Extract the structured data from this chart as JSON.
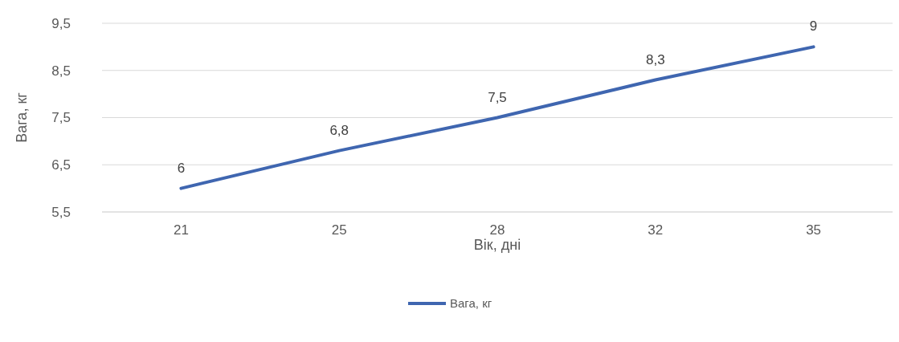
{
  "chart_data": {
    "type": "line",
    "xlabel": "Вік, дні",
    "ylabel": "Вага, кг",
    "categories": [
      "21",
      "25",
      "28",
      "32",
      "35"
    ],
    "series": [
      {
        "name": "Вага, кг",
        "color": "#3f66b0",
        "values": [
          6,
          6.8,
          7.5,
          8.3,
          9
        ],
        "value_labels": [
          "6",
          "6,8",
          "7,5",
          "8,3",
          "9"
        ]
      }
    ],
    "ylim": [
      5.5,
      9.5
    ],
    "yticks": [
      {
        "value": 5.5,
        "label": "5,5"
      },
      {
        "value": 6.5,
        "label": "6,5"
      },
      {
        "value": 7.5,
        "label": "7,5"
      },
      {
        "value": 8.5,
        "label": "8,5"
      },
      {
        "value": 9.5,
        "label": "9,5"
      }
    ],
    "grid": "y",
    "legend": "bottom",
    "marker": "none",
    "line_style": "solid"
  }
}
